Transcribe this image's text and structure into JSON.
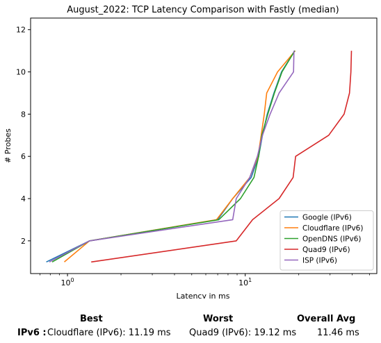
{
  "chart_data": {
    "type": "line",
    "title": "August_2022: TCP Latency Comparison with Fastly (median)",
    "xlabel": "Latency in ms",
    "ylabel": "# Probes",
    "xscale": "log",
    "xlim": [
      0.62,
      55
    ],
    "ylim": [
      0.45,
      12.55
    ],
    "xticks": [
      1,
      10
    ],
    "xtick_labels": [
      "10^0",
      "10^1"
    ],
    "yticks": [
      2,
      4,
      6,
      8,
      10,
      12
    ],
    "grid": false,
    "legend_position": "lower right",
    "series": [
      {
        "name": "Google (IPv6)",
        "color": "#1f77b4",
        "x": [
          0.76,
          1.33,
          7.0,
          8.5,
          10.8,
          11.9,
          12.5,
          13.3,
          14.5,
          16.0,
          19.0
        ],
        "y": [
          1,
          2,
          3,
          4,
          5,
          6,
          7,
          8,
          9,
          10,
          11
        ]
      },
      {
        "name": "Cloudflare (IPv6)",
        "color": "#ff7f0e",
        "x": [
          0.96,
          1.33,
          6.9,
          8.5,
          10.6,
          11.8,
          12.3,
          12.8,
          13.2,
          15.2,
          19.1
        ],
        "y": [
          1,
          2,
          3,
          4,
          5,
          6,
          7,
          8,
          9,
          10,
          11
        ]
      },
      {
        "name": "OpenDNS (IPv6)",
        "color": "#2ca02c",
        "x": [
          0.82,
          1.33,
          7.1,
          9.4,
          11.2,
          11.9,
          12.4,
          13.4,
          14.6,
          16.1,
          19.0
        ],
        "y": [
          1,
          2,
          3,
          4,
          5,
          6,
          7,
          8,
          9,
          10,
          11
        ]
      },
      {
        "name": "Quad9 (IPv6)",
        "color": "#d62728",
        "x": [
          1.36,
          8.9,
          11.0,
          15.5,
          18.6,
          19.2,
          29.5,
          36.0,
          38.6,
          39.3,
          39.6
        ],
        "y": [
          1,
          2,
          3,
          4,
          5,
          6,
          7,
          8,
          9,
          10,
          11
        ]
      },
      {
        "name": "ISP (IPv6)",
        "color": "#9467bd",
        "x": [
          0.79,
          1.33,
          8.5,
          8.9,
          10.6,
          11.7,
          12.5,
          13.8,
          15.5,
          18.7,
          18.8
        ],
        "y": [
          1,
          2,
          3,
          4,
          5,
          6,
          7,
          8,
          9,
          10,
          11
        ]
      }
    ]
  },
  "summary": {
    "best_label": "Best",
    "worst_label": "Worst",
    "avg_label": "Overall Avg",
    "row_label": "IPv6 :",
    "best_value": "Cloudflare (IPv6): 11.19 ms",
    "worst_value": "Quad9 (IPv6): 19.12 ms",
    "avg_value": "11.46 ms"
  }
}
